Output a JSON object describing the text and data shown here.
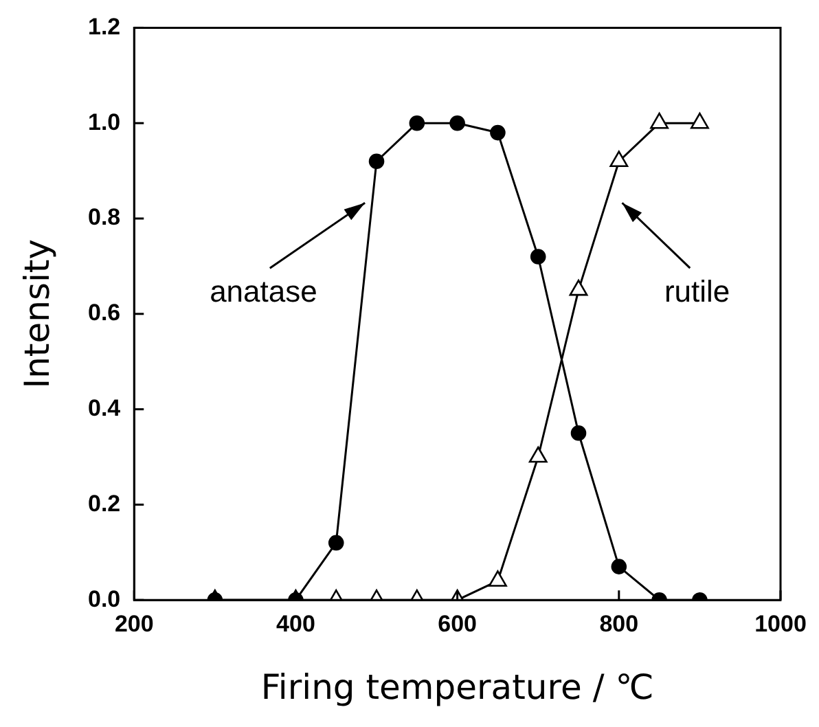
{
  "chart_data": {
    "type": "line",
    "xlabel": "Firing temperature / ℃",
    "ylabel": "Intensity",
    "x": [
      300,
      400,
      450,
      500,
      550,
      600,
      650,
      700,
      750,
      800,
      850,
      900
    ],
    "series": [
      {
        "color": "#000000",
        "marker": "circle",
        "values": [
          0,
          0,
          0.12,
          0.92,
          1.0,
          1.0,
          0.98,
          0.72,
          0.35,
          0.07,
          0,
          0
        ]
      },
      {
        "color": "#000000",
        "marker": "triangle",
        "values": [
          0,
          0,
          0,
          0,
          0,
          0,
          0.04,
          0.3,
          0.65,
          0.92,
          1.0,
          1.0
        ]
      }
    ],
    "xlim": [
      200,
      1000
    ],
    "xticks": [
      200,
      400,
      600,
      800,
      1000
    ],
    "ylim": [
      0,
      1.2
    ],
    "yticks": [
      {
        "value": 0,
        "label": "0.0"
      },
      {
        "value": 0.2,
        "label": "0.2"
      },
      {
        "value": 0.4,
        "label": "0.4"
      },
      {
        "value": 0.6,
        "label": "0.6"
      },
      {
        "value": 0.8,
        "label": "0.8"
      },
      {
        "value": 1.0,
        "label": "1.0"
      },
      {
        "value": 1.2,
        "label": "1.2"
      }
    ],
    "grid": false,
    "legend": false,
    "line_style": "solid",
    "annotations": [
      "anatase",
      "rutile"
    ]
  }
}
